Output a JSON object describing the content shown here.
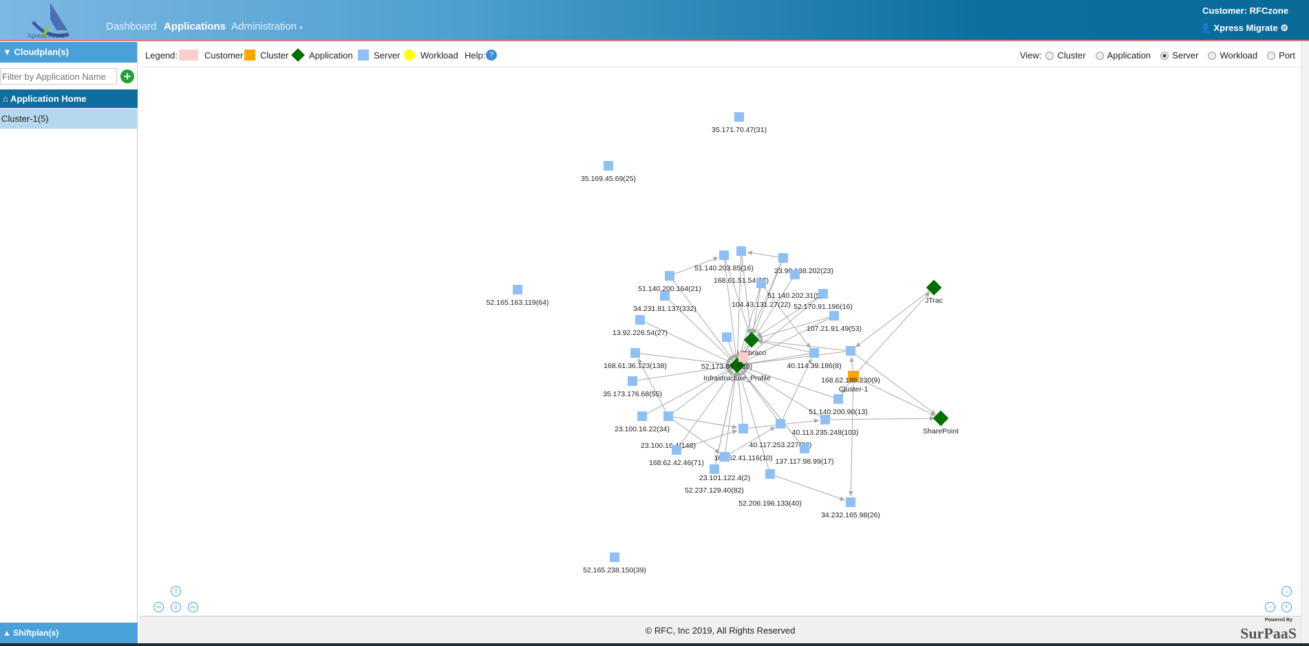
{
  "header": {
    "logo_text": "Xpress Azure",
    "nav": [
      "Dashboard",
      "Applications",
      "Administration"
    ],
    "active_nav": "Applications",
    "customer": "Customer: RFCzone",
    "user": "Xpress Migrate"
  },
  "sidebar": {
    "cloudplan": "Cloudplan(s)",
    "filter_placeholder": "Filter by Application Name",
    "app_home": "Application Home",
    "cluster_item": "Cluster-1(5)",
    "shiftplan": "Shiftplan(s)"
  },
  "legend": {
    "title": "Legend:",
    "items": [
      {
        "label": "Customer",
        "color": "#ffcccc"
      },
      {
        "label": "Cluster",
        "color": "#ffa500"
      },
      {
        "label": "Application",
        "color": "#007000"
      },
      {
        "label": "Server",
        "color": "#8fc0f5"
      },
      {
        "label": "Workload",
        "color": "#ffff00"
      }
    ],
    "help": "Help:"
  },
  "view": {
    "label": "View:",
    "options": [
      "Cluster",
      "Application",
      "Server",
      "Workload",
      "Port"
    ],
    "selected": "Server"
  },
  "graph": {
    "nodes": [
      {
        "label": "Infrastructure_Profile",
        "type": "application"
      },
      {
        "label": "Umbraco",
        "type": "application"
      },
      {
        "label": "",
        "type": "customer"
      },
      {
        "label": "JTrac",
        "type": "application"
      },
      {
        "label": "SharePoint",
        "type": "application"
      },
      {
        "label": "Cluster-1",
        "type": "cluster"
      },
      {
        "label": "35.171.70.47(31)",
        "type": "server"
      },
      {
        "label": "35.169.45.69(25)",
        "type": "server"
      },
      {
        "label": "52.165.163.119(64)",
        "type": "server"
      },
      {
        "label": "52.165.238.150(39)",
        "type": "server"
      },
      {
        "label": "51.140.203.85(16)",
        "type": "server"
      },
      {
        "label": "168.61.51.54(27)",
        "type": "server"
      },
      {
        "label": "23.99.138.202(23)",
        "type": "server"
      },
      {
        "label": "51.140.202.31(5)",
        "type": "server"
      },
      {
        "label": "104.43.131.27(22)",
        "type": "server"
      },
      {
        "label": "51.140.200.164(21)",
        "type": "server"
      },
      {
        "label": "34.231.81.137(332)",
        "type": "server"
      },
      {
        "label": "52.170.91.196(16)",
        "type": "server"
      },
      {
        "label": "107.21.91.49(53)",
        "type": "server"
      },
      {
        "label": "13.92.226.54(27)",
        "type": "server"
      },
      {
        "label": "52.173.84.7(39)",
        "type": "server"
      },
      {
        "label": "168.61.36.123(138)",
        "type": "server"
      },
      {
        "label": "40.114.39.186(8)",
        "type": "server"
      },
      {
        "label": "168.62.188.230(9)",
        "type": "server"
      },
      {
        "label": "35.173.176.68(55)",
        "type": "server"
      },
      {
        "label": "51.140.200.90(13)",
        "type": "server"
      },
      {
        "label": "23.100.16.22(34)",
        "type": "server"
      },
      {
        "label": "23.100.16.4(148)",
        "type": "server"
      },
      {
        "label": "40.113.235.248(103)",
        "type": "server"
      },
      {
        "label": "40.117.253.227(22)",
        "type": "server"
      },
      {
        "label": "168.62.41.116(10)",
        "type": "server"
      },
      {
        "label": "137.117.98.99(17)",
        "type": "server"
      },
      {
        "label": "168.62.42.46(71)",
        "type": "server"
      },
      {
        "label": "23.101.122.4(2)",
        "type": "server"
      },
      {
        "label": "52.237.129.40(82)",
        "type": "server"
      },
      {
        "label": "52.206.196.133(40)",
        "type": "server"
      },
      {
        "label": "34.232.165.98(26)",
        "type": "server"
      }
    ],
    "edges": [
      [
        10,
        0
      ],
      [
        11,
        0
      ],
      [
        12,
        0
      ],
      [
        13,
        0
      ],
      [
        14,
        0
      ],
      [
        15,
        0
      ],
      [
        16,
        0
      ],
      [
        17,
        0
      ],
      [
        18,
        0
      ],
      [
        19,
        0
      ],
      [
        20,
        0
      ],
      [
        21,
        0
      ],
      [
        22,
        0
      ],
      [
        23,
        0
      ],
      [
        24,
        0
      ],
      [
        25,
        0
      ],
      [
        26,
        0
      ],
      [
        27,
        0
      ],
      [
        28,
        0
      ],
      [
        29,
        0
      ],
      [
        30,
        0
      ],
      [
        31,
        0
      ],
      [
        32,
        0
      ],
      [
        33,
        0
      ],
      [
        34,
        0
      ],
      [
        35,
        0
      ],
      [
        10,
        1
      ],
      [
        11,
        1
      ],
      [
        12,
        1
      ],
      [
        14,
        1
      ],
      [
        17,
        1
      ],
      [
        18,
        1
      ],
      [
        22,
        1
      ],
      [
        23,
        1
      ],
      [
        15,
        10
      ],
      [
        12,
        11
      ],
      [
        14,
        22
      ],
      [
        27,
        33
      ],
      [
        27,
        30
      ],
      [
        32,
        30
      ],
      [
        30,
        28
      ],
      [
        35,
        36
      ],
      [
        5,
        3
      ],
      [
        5,
        4
      ],
      [
        5,
        23
      ],
      [
        5,
        36
      ],
      [
        5,
        25
      ],
      [
        3,
        23
      ],
      [
        23,
        4
      ],
      [
        28,
        4
      ],
      [
        29,
        22
      ],
      [
        31,
        0
      ],
      [
        27,
        21
      ],
      [
        33,
        29
      ],
      [
        34,
        0
      ],
      [
        1,
        0
      ],
      [
        2,
        0
      ]
    ],
    "colors": {
      "server": "#8fc0f5",
      "application": "#007000",
      "cluster": "#ffa500",
      "customer": "#ffcccc",
      "edge": "#a8a8a8"
    }
  },
  "footer": {
    "copyright": "© RFC, Inc 2019, All Rights Reserved",
    "powered_by": "Powered By",
    "brand": "SurPaaS"
  }
}
